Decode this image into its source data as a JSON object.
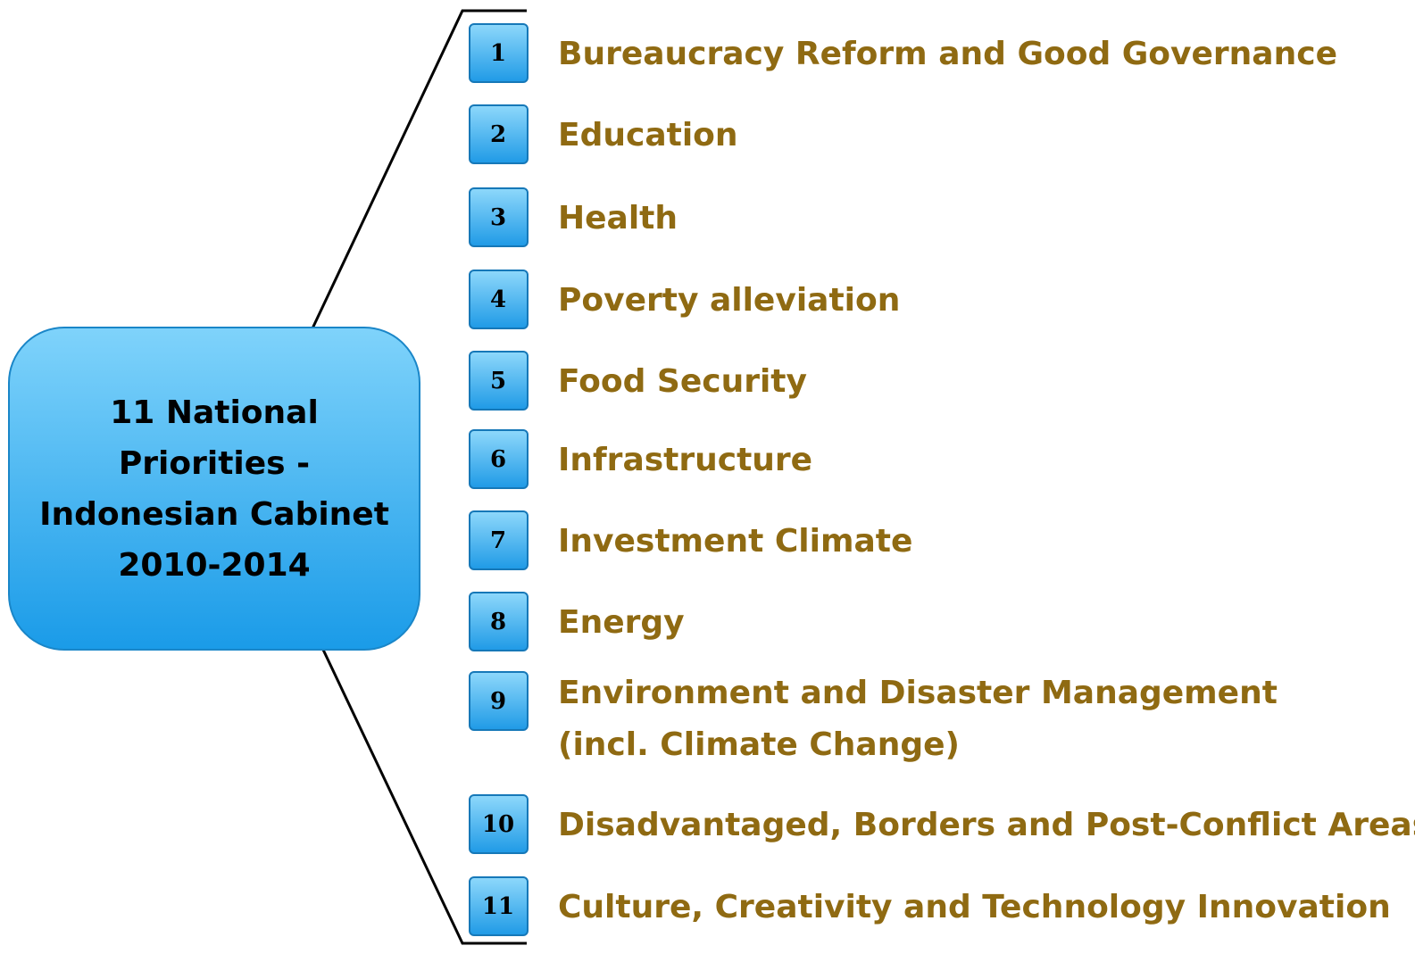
{
  "center": {
    "lines": [
      "11 National",
      "Priorities -",
      "Indonesian Cabinet",
      "2010-2014"
    ]
  },
  "items": [
    {
      "number": "1",
      "lines": [
        "Bureaucracy Reform and Good Governance"
      ]
    },
    {
      "number": "2",
      "lines": [
        "Education"
      ]
    },
    {
      "number": "3",
      "lines": [
        "Health"
      ]
    },
    {
      "number": "4",
      "lines": [
        "Poverty alleviation"
      ]
    },
    {
      "number": "5",
      "lines": [
        "Food Security"
      ]
    },
    {
      "number": "6",
      "lines": [
        "Infrastructure"
      ]
    },
    {
      "number": "7",
      "lines": [
        "Investment Climate"
      ]
    },
    {
      "number": "8",
      "lines": [
        "Energy"
      ]
    },
    {
      "number": "9",
      "lines": [
        "Environment and Disaster Management",
        "(incl. Climate Change)"
      ]
    },
    {
      "number": "10",
      "lines": [
        "Disadvantaged, Borders and Post-Conflict Areas"
      ]
    },
    {
      "number": "11",
      "lines": [
        "Culture, Creativity and Technology Innovation"
      ]
    }
  ]
}
